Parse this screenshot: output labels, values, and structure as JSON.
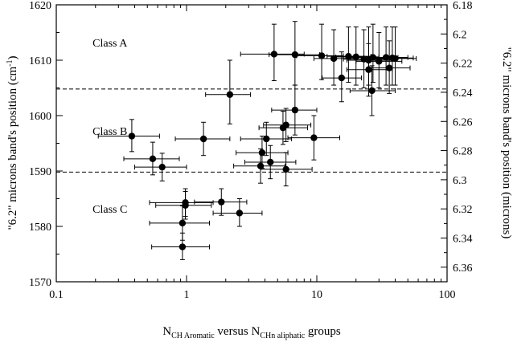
{
  "chart_data": {
    "type": "scatter",
    "title": "",
    "xscale": "log",
    "xlim": [
      0.1,
      100
    ],
    "ylim": [
      1570,
      1620
    ],
    "y2lim": [
      6.18,
      6.37
    ],
    "xticks": [
      "0.1",
      "1",
      "10",
      "100"
    ],
    "yticks": [
      "1570",
      "1580",
      "1590",
      "1600",
      "1610",
      "1620"
    ],
    "y2ticks": [
      "6.18",
      "6.2",
      "6.22",
      "6.24",
      "6.26",
      "6.28",
      "6.3",
      "6.32",
      "6.34",
      "6.36"
    ],
    "xlabel_parts": [
      "N",
      "CH Aromatic",
      " versus N",
      "CHn aliphatic",
      " groups"
    ],
    "ylabel_left": "\"6.2\" microns band's position (cm",
    "ylabel_left_sup": "-1",
    "ylabel_left_end": ")",
    "ylabel_right": "\"6.2\" microns band's position (microns)",
    "class_labels": [
      {
        "text": "Class A",
        "x": 0.19,
        "y": 1612.5
      },
      {
        "text": "Class B",
        "x": 0.19,
        "y": 1596.5
      },
      {
        "text": "Class C",
        "x": 0.19,
        "y": 1582.5
      }
    ],
    "hlines": [
      1604.8,
      1589.8
    ],
    "grid": false,
    "legend": "none",
    "marker_color": "#000000",
    "points": [
      {
        "x": 4.7,
        "y": 1611.1,
        "xlo": 2.6,
        "xhi": 8.0,
        "ylo": 1606.3,
        "yhi": 1616.5
      },
      {
        "x": 6.8,
        "y": 1611.0,
        "xlo": 4.3,
        "xhi": 10.5,
        "ylo": 1605.5,
        "yhi": 1617.0
      },
      {
        "x": 10.9,
        "y": 1610.8,
        "xlo": 7.0,
        "xhi": 16.0,
        "ylo": 1606.5,
        "yhi": 1616.5
      },
      {
        "x": 13.5,
        "y": 1610.3,
        "xlo": 9.5,
        "xhi": 20.0,
        "ylo": 1605.5,
        "yhi": 1615.5
      },
      {
        "x": 17.5,
        "y": 1610.7,
        "xlo": 12.0,
        "xhi": 26.0,
        "ylo": 1606.0,
        "yhi": 1616.0
      },
      {
        "x": 20.0,
        "y": 1610.6,
        "xlo": 14.0,
        "xhi": 30.0,
        "ylo": 1605.5,
        "yhi": 1616.0
      },
      {
        "x": 23.0,
        "y": 1610.2,
        "xlo": 16.0,
        "xhi": 35.0,
        "ylo": 1605.0,
        "yhi": 1615.5
      },
      {
        "x": 25.0,
        "y": 1610.0,
        "xlo": 17.0,
        "xhi": 40.0,
        "ylo": 1605.5,
        "yhi": 1616.0
      },
      {
        "x": 27.0,
        "y": 1610.5,
        "xlo": 18.0,
        "xhi": 42.0,
        "ylo": 1606.0,
        "yhi": 1616.5
      },
      {
        "x": 30.0,
        "y": 1609.8,
        "xlo": 20.0,
        "xhi": 45.0,
        "ylo": 1605.0,
        "yhi": 1615.0
      },
      {
        "x": 34.0,
        "y": 1610.5,
        "xlo": 23.0,
        "xhi": 50.0,
        "ylo": 1605.5,
        "yhi": 1616.0
      },
      {
        "x": 38.0,
        "y": 1610.4,
        "xlo": 26.0,
        "xhi": 55.0,
        "ylo": 1605.5,
        "yhi": 1616.0
      },
      {
        "x": 40.0,
        "y": 1610.3,
        "xlo": 28.0,
        "xhi": 58.0,
        "ylo": 1605.5,
        "yhi": 1616.0
      },
      {
        "x": 25.0,
        "y": 1608.3,
        "xlo": 17.0,
        "xhi": 38.0,
        "ylo": 1603.5,
        "yhi": 1613.0
      },
      {
        "x": 36.0,
        "y": 1608.6,
        "xlo": 25.0,
        "xhi": 52.0,
        "ylo": 1604.0,
        "yhi": 1613.5
      },
      {
        "x": 15.5,
        "y": 1606.8,
        "xlo": 11.0,
        "xhi": 22.0,
        "ylo": 1602.5,
        "yhi": 1611.5
      },
      {
        "x": 26.5,
        "y": 1604.5,
        "xlo": 18.0,
        "xhi": 40.0,
        "ylo": 1600.0,
        "yhi": 1609.0
      },
      {
        "x": 2.15,
        "y": 1603.8,
        "xlo": 1.4,
        "xhi": 3.1,
        "ylo": 1598.5,
        "yhi": 1610.0
      },
      {
        "x": 6.8,
        "y": 1601.0,
        "xlo": 4.5,
        "xhi": 10.0,
        "ylo": 1596.5,
        "yhi": 1605.5
      },
      {
        "x": 0.38,
        "y": 1596.3,
        "xlo": 0.21,
        "xhi": 0.62,
        "ylo": 1593.5,
        "yhi": 1599.3
      },
      {
        "x": 1.35,
        "y": 1595.8,
        "xlo": 0.82,
        "xhi": 2.15,
        "ylo": 1592.8,
        "yhi": 1598.8
      },
      {
        "x": 4.1,
        "y": 1595.8,
        "xlo": 2.6,
        "xhi": 6.4,
        "ylo": 1592.8,
        "yhi": 1598.8
      },
      {
        "x": 5.5,
        "y": 1597.8,
        "xlo": 3.6,
        "xhi": 8.5,
        "ylo": 1594.8,
        "yhi": 1600.8
      },
      {
        "x": 5.8,
        "y": 1598.3,
        "xlo": 3.9,
        "xhi": 9.0,
        "ylo": 1595.3,
        "yhi": 1601.3
      },
      {
        "x": 9.5,
        "y": 1596.0,
        "xlo": 6.0,
        "xhi": 15.0,
        "ylo": 1592.0,
        "yhi": 1600.0
      },
      {
        "x": 0.55,
        "y": 1592.2,
        "xlo": 0.33,
        "xhi": 0.88,
        "ylo": 1589.3,
        "yhi": 1595.2
      },
      {
        "x": 0.65,
        "y": 1590.7,
        "xlo": 0.4,
        "xhi": 1.0,
        "ylo": 1588.2,
        "yhi": 1593.2
      },
      {
        "x": 3.7,
        "y": 1590.9,
        "xlo": 2.3,
        "xhi": 5.7,
        "ylo": 1587.8,
        "yhi": 1594.0
      },
      {
        "x": 3.8,
        "y": 1593.3,
        "xlo": 2.4,
        "xhi": 6.0,
        "ylo": 1590.5,
        "yhi": 1596.3
      },
      {
        "x": 4.4,
        "y": 1591.6,
        "xlo": 2.8,
        "xhi": 6.9,
        "ylo": 1588.6,
        "yhi": 1594.6
      },
      {
        "x": 5.8,
        "y": 1590.3,
        "xlo": 3.7,
        "xhi": 9.2,
        "ylo": 1587.3,
        "yhi": 1593.3
      },
      {
        "x": 0.98,
        "y": 1584.3,
        "xlo": 0.52,
        "xhi": 1.6,
        "ylo": 1581.8,
        "yhi": 1586.8
      },
      {
        "x": 0.98,
        "y": 1583.8,
        "xlo": 0.58,
        "xhi": 1.55,
        "ylo": 1581.3,
        "yhi": 1586.3
      },
      {
        "x": 1.85,
        "y": 1584.4,
        "xlo": 1.15,
        "xhi": 2.9,
        "ylo": 1582.0,
        "yhi": 1586.8
      },
      {
        "x": 2.55,
        "y": 1582.4,
        "xlo": 1.6,
        "xhi": 3.8,
        "ylo": 1580.0,
        "yhi": 1585.0
      },
      {
        "x": 0.93,
        "y": 1580.6,
        "xlo": 0.52,
        "xhi": 1.5,
        "ylo": 1577.5,
        "yhi": 1583.7
      },
      {
        "x": 0.93,
        "y": 1576.3,
        "xlo": 0.54,
        "xhi": 1.5,
        "ylo": 1574.0,
        "yhi": 1578.8
      }
    ]
  }
}
